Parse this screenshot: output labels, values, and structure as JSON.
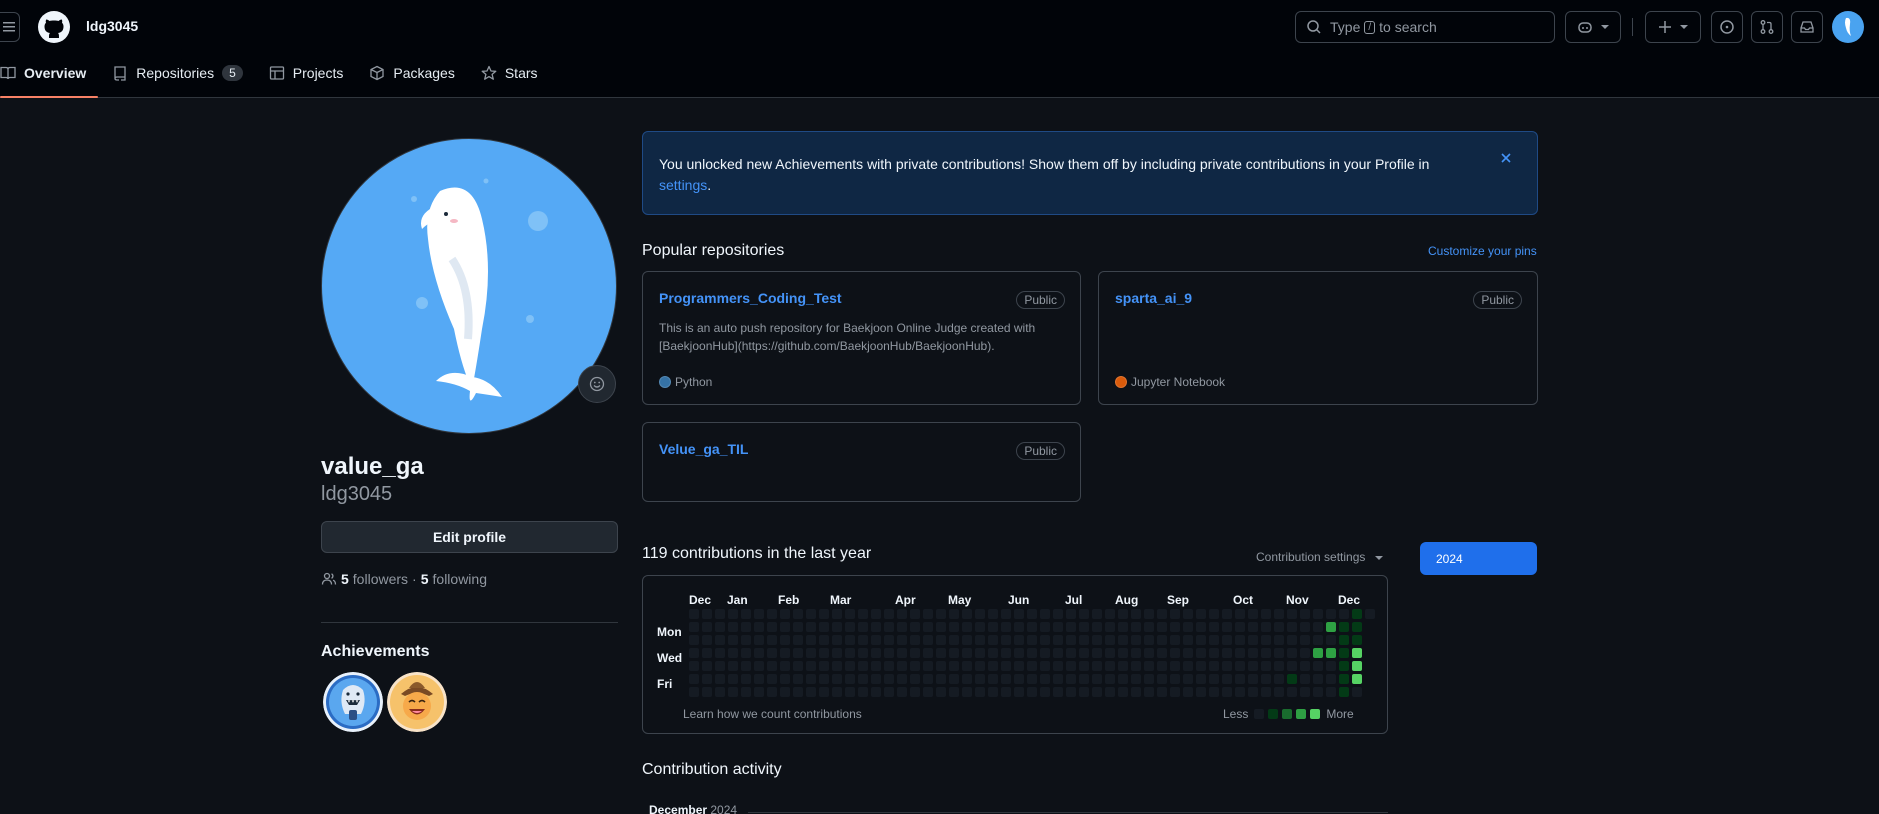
{
  "header": {
    "context": "ldg3045",
    "search_prefix": "Type",
    "search_key": "/",
    "search_suffix": "to search"
  },
  "tabs": [
    {
      "label": "Overview"
    },
    {
      "label": "Repositories",
      "count": "5"
    },
    {
      "label": "Projects"
    },
    {
      "label": "Packages"
    },
    {
      "label": "Stars"
    }
  ],
  "profile": {
    "name": "value_ga",
    "login": "ldg3045",
    "edit_label": "Edit profile",
    "followers_count": "5",
    "followers_label": "followers",
    "separator": "·",
    "following_count": "5",
    "following_label": "following",
    "achievements_title": "Achievements"
  },
  "flash": {
    "text": "You unlocked new Achievements with private contributions! Show them off by including private contributions in your Profile in",
    "link": "settings",
    "end": "."
  },
  "popular": {
    "title": "Popular repositories",
    "customize": "Customize your pins",
    "repos": [
      {
        "name": "Programmers_Coding_Test",
        "visibility": "Public",
        "description": "This is an auto push repository for Baekjoon Online Judge created with [BaekjoonHub](https://github.com/BaekjoonHub/BaekjoonHub).",
        "language": "Python",
        "lang_color": "#3572A5"
      },
      {
        "name": "sparta_ai_9",
        "visibility": "Public",
        "description": "",
        "language": "Jupyter Notebook",
        "lang_color": "#DA5B0B"
      },
      {
        "name": "Velue_ga_TIL",
        "visibility": "Public",
        "description": "",
        "language": "",
        "lang_color": ""
      }
    ]
  },
  "contributions": {
    "title": "119 contributions in the last year",
    "settings_label": "Contribution settings",
    "year": "2024",
    "months": [
      "Dec",
      "Jan",
      "Feb",
      "Mar",
      "Apr",
      "May",
      "Jun",
      "Jul",
      "Aug",
      "Sep",
      "Oct",
      "Nov",
      "Dec"
    ],
    "days": [
      "Mon",
      "Wed",
      "Fri"
    ],
    "learn": "Learn how we count contributions",
    "less": "Less",
    "more": "More",
    "colors": [
      "#151b23",
      "#033a16",
      "#196c2e",
      "#2ea043",
      "#56d364"
    ],
    "active_cells": [
      {
        "week": 46,
        "day": 5,
        "level": 1
      },
      {
        "week": 48,
        "day": 3,
        "level": 3
      },
      {
        "week": 49,
        "day": 1,
        "level": 3
      },
      {
        "week": 49,
        "day": 3,
        "level": 3
      },
      {
        "week": 50,
        "day": 1,
        "level": 1
      },
      {
        "week": 50,
        "day": 2,
        "level": 1
      },
      {
        "week": 50,
        "day": 3,
        "level": 1
      },
      {
        "week": 50,
        "day": 4,
        "level": 1
      },
      {
        "week": 50,
        "day": 5,
        "level": 1
      },
      {
        "week": 50,
        "day": 6,
        "level": 1
      },
      {
        "week": 51,
        "day": 0,
        "level": 1
      },
      {
        "week": 51,
        "day": 1,
        "level": 1
      },
      {
        "week": 51,
        "day": 2,
        "level": 1
      },
      {
        "week": 51,
        "day": 3,
        "level": 4
      },
      {
        "week": 51,
        "day": 4,
        "level": 4
      },
      {
        "week": 51,
        "day": 5,
        "level": 4
      }
    ]
  },
  "activity": {
    "title": "Contribution activity",
    "month": "December",
    "year": "2024"
  }
}
